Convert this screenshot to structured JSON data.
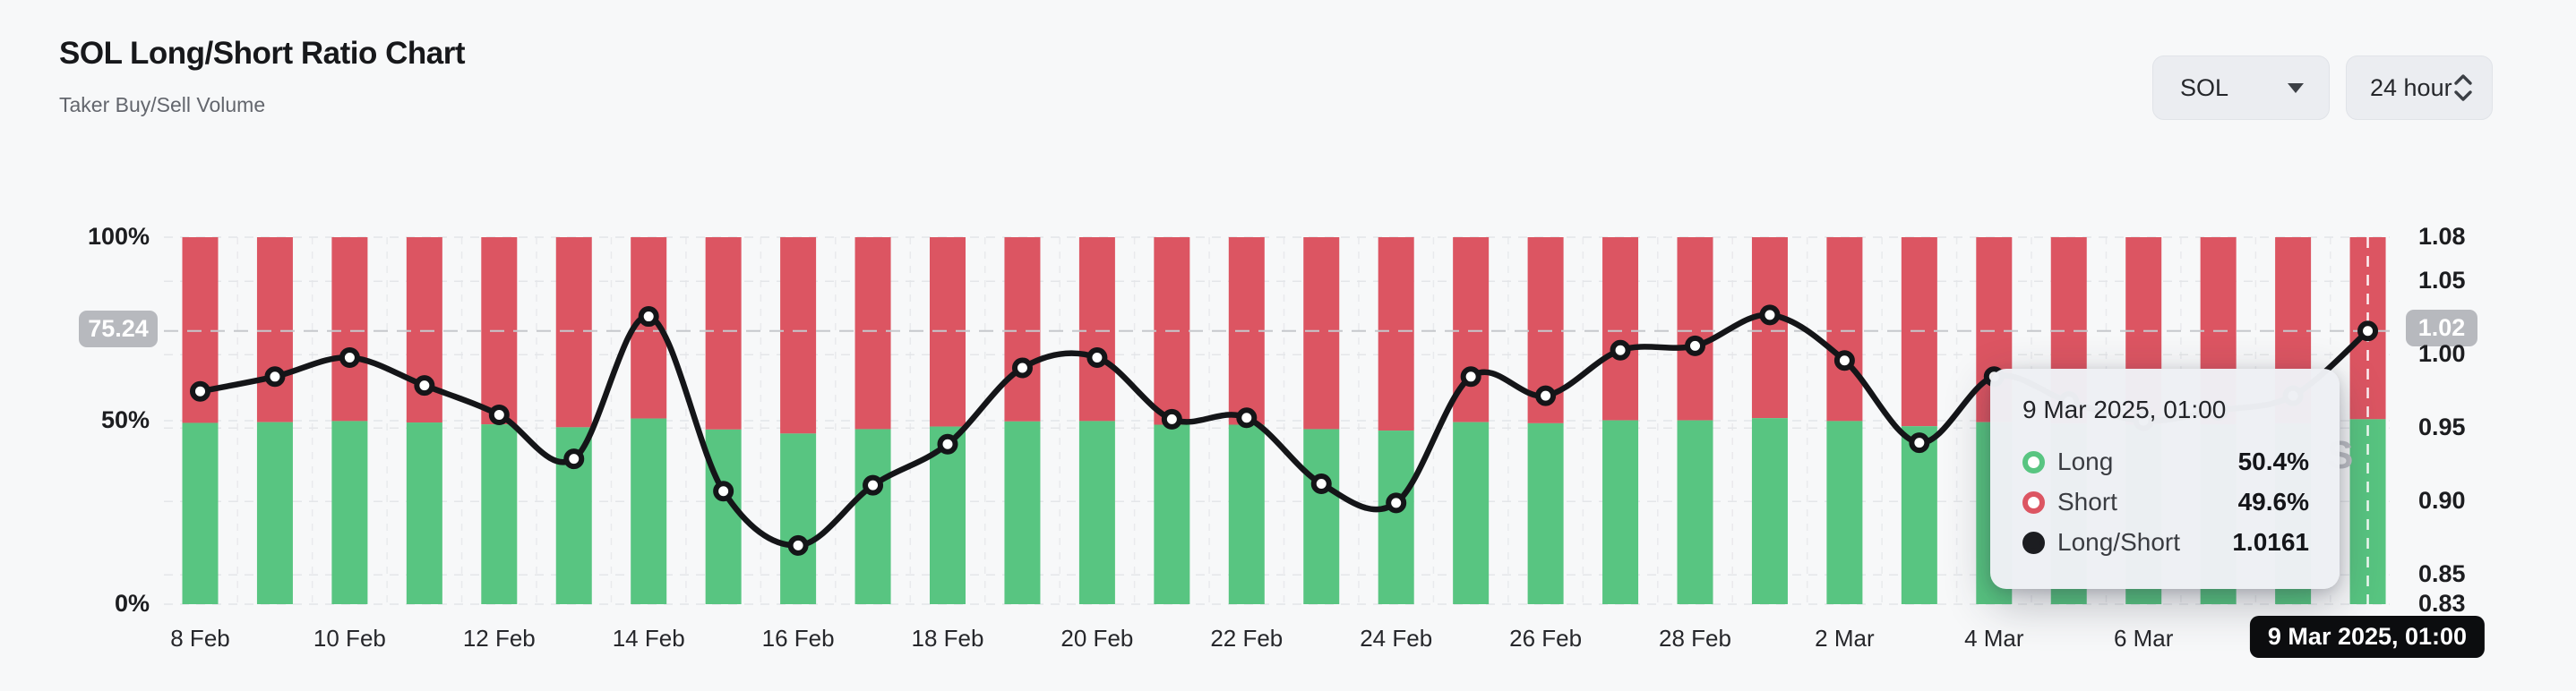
{
  "header": {
    "title": "SOL Long/Short Ratio Chart",
    "subtitle": "Taker Buy/Sell Volume"
  },
  "controls": {
    "symbol": {
      "value": "SOL"
    },
    "interval": {
      "value": "24 hour"
    }
  },
  "watermark": {
    "letter": "S"
  },
  "chart_data": {
    "type": "mixed",
    "title": "SOL Long/Short Ratio Chart",
    "subtitle": "Taker Buy/Sell Volume",
    "categories": [
      "8 Feb",
      "9 Feb",
      "10 Feb",
      "11 Feb",
      "12 Feb",
      "13 Feb",
      "14 Feb",
      "15 Feb",
      "16 Feb",
      "17 Feb",
      "18 Feb",
      "19 Feb",
      "20 Feb",
      "21 Feb",
      "22 Feb",
      "23 Feb",
      "24 Feb",
      "25 Feb",
      "26 Feb",
      "27 Feb",
      "28 Feb",
      "1 Mar",
      "2 Mar",
      "3 Mar",
      "4 Mar",
      "5 Mar",
      "6 Mar",
      "7 Mar",
      "8 Mar",
      "9 Mar"
    ],
    "x_tick_labels": [
      "8 Feb",
      "10 Feb",
      "12 Feb",
      "14 Feb",
      "16 Feb",
      "18 Feb",
      "20 Feb",
      "22 Feb",
      "24 Feb",
      "26 Feb",
      "28 Feb",
      "2 Mar",
      "4 Mar",
      "6 Mar",
      "8 Mar"
    ],
    "series": [
      {
        "name": "Long",
        "type": "bar",
        "stack": true,
        "unit": "%",
        "color": "#58c581",
        "values": [
          49.4,
          49.6,
          49.9,
          49.5,
          49.0,
          48.2,
          50.6,
          47.6,
          46.5,
          47.7,
          48.4,
          49.8,
          49.9,
          48.9,
          48.9,
          47.7,
          47.3,
          49.6,
          49.3,
          50.1,
          50.1,
          50.7,
          49.9,
          48.5,
          49.6,
          49.2,
          48.9,
          49.0,
          49.3,
          50.4
        ]
      },
      {
        "name": "Short",
        "type": "bar",
        "stack": true,
        "unit": "%",
        "color": "#dc5562",
        "values": [
          50.6,
          50.4,
          50.1,
          50.5,
          51.0,
          51.8,
          49.4,
          52.4,
          53.5,
          52.3,
          51.6,
          50.2,
          50.1,
          51.1,
          51.1,
          52.3,
          52.7,
          50.4,
          50.7,
          49.9,
          49.9,
          49.3,
          50.1,
          51.5,
          50.4,
          50.8,
          51.1,
          51.0,
          50.7,
          49.6
        ]
      },
      {
        "name": "Long/Short",
        "type": "line",
        "color": "#141518",
        "values": [
          0.975,
          0.985,
          0.998,
          0.979,
          0.959,
          0.929,
          1.026,
          0.907,
          0.87,
          0.911,
          0.939,
          0.991,
          0.998,
          0.956,
          0.957,
          0.912,
          0.899,
          0.985,
          0.972,
          1.003,
          1.006,
          1.027,
          0.996,
          0.94,
          0.985,
          0.968,
          0.955,
          0.962,
          0.972,
          1.0161
        ]
      }
    ],
    "left_axis": {
      "range": [
        0,
        100
      ],
      "ticks": [
        {
          "label": "100%",
          "value": 100
        },
        {
          "label": "50%",
          "value": 50
        },
        {
          "label": "0%",
          "value": 0
        }
      ]
    },
    "right_axis": {
      "range": [
        0.83,
        1.08
      ],
      "ticks": [
        {
          "label": "1.08",
          "value": 1.08
        },
        {
          "label": "1.05",
          "value": 1.05
        },
        {
          "label": "1.00",
          "value": 1.0
        },
        {
          "label": "0.95",
          "value": 0.95
        },
        {
          "label": "0.90",
          "value": 0.9
        },
        {
          "label": "0.85",
          "value": 0.85
        },
        {
          "label": "0.83",
          "value": 0.83
        }
      ]
    },
    "grid": "dashed",
    "legend_position": "none",
    "crosshair": {
      "point_index": 29,
      "left_badge": "75.24",
      "right_badge": "1.02",
      "x_badge": "9 Mar 2025, 01:00"
    }
  },
  "tooltip": {
    "date": "9 Mar 2025, 01:00",
    "rows": [
      {
        "label": "Long",
        "value": "50.4%",
        "color": "#58c581",
        "icon": "ring"
      },
      {
        "label": "Short",
        "value": "49.6%",
        "color": "#dc5562",
        "icon": "ring"
      },
      {
        "label": "Long/Short",
        "value": "1.0161",
        "color": "#1c1d21",
        "icon": "filled"
      }
    ]
  }
}
